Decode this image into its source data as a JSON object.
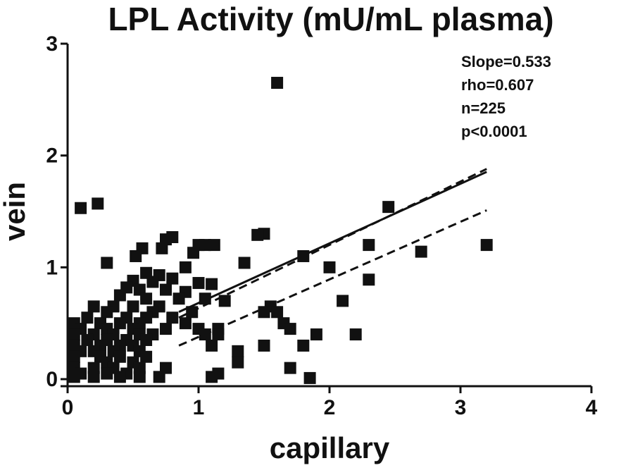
{
  "chart_data": {
    "type": "scatter",
    "title": "LPL Activity (mU/mL plasma)",
    "xlabel": "capillary",
    "ylabel": "vein",
    "xlim": [
      0,
      4
    ],
    "ylim": [
      0,
      3
    ],
    "xticks": [
      "0",
      "1",
      "2",
      "3",
      "4"
    ],
    "yticks": [
      "0",
      "1",
      "2",
      "3"
    ],
    "grid": false,
    "annotations": [
      "Slope=0.533",
      "rho=0.607",
      "n=225",
      "p<0.0001"
    ],
    "regression": {
      "slope": 0.533,
      "x_range": [
        0,
        3.2
      ]
    },
    "confidence_band": {
      "lower": [
        [
          0.85,
          0.3
        ],
        [
          3.2,
          1.51
        ]
      ],
      "upper": [
        [
          0.85,
          0.55
        ],
        [
          3.2,
          1.88
        ]
      ]
    },
    "points": [
      [
        1.6,
        2.65
      ],
      [
        0.1,
        1.53
      ],
      [
        0.23,
        1.57
      ],
      [
        2.45,
        1.54
      ],
      [
        1.5,
        1.3
      ],
      [
        1.45,
        1.29
      ],
      [
        0.8,
        1.27
      ],
      [
        0.75,
        1.25
      ],
      [
        1.0,
        1.2
      ],
      [
        1.05,
        1.2
      ],
      [
        1.12,
        1.2
      ],
      [
        2.3,
        1.2
      ],
      [
        3.2,
        1.2
      ],
      [
        0.57,
        1.17
      ],
      [
        0.72,
        1.17
      ],
      [
        0.96,
        1.13
      ],
      [
        2.7,
        1.14
      ],
      [
        0.52,
        1.1
      ],
      [
        1.8,
        1.1
      ],
      [
        0.3,
        1.04
      ],
      [
        1.35,
        1.04
      ],
      [
        0.9,
        1.0
      ],
      [
        2.0,
        1.0
      ],
      [
        0.6,
        0.95
      ],
      [
        0.7,
        0.93
      ],
      [
        0.8,
        0.9
      ],
      [
        2.3,
        0.89
      ],
      [
        0.5,
        0.88
      ],
      [
        0.65,
        0.87
      ],
      [
        1.0,
        0.86
      ],
      [
        1.1,
        0.85
      ],
      [
        0.45,
        0.82
      ],
      [
        0.55,
        0.8
      ],
      [
        0.75,
        0.8
      ],
      [
        0.9,
        0.78
      ],
      [
        0.4,
        0.75
      ],
      [
        0.6,
        0.72
      ],
      [
        0.85,
        0.72
      ],
      [
        1.05,
        0.72
      ],
      [
        1.2,
        0.7
      ],
      [
        2.1,
        0.7
      ],
      [
        0.2,
        0.65
      ],
      [
        0.35,
        0.65
      ],
      [
        0.5,
        0.65
      ],
      [
        0.7,
        0.65
      ],
      [
        1.55,
        0.65
      ],
      [
        0.3,
        0.6
      ],
      [
        0.65,
        0.6
      ],
      [
        0.95,
        0.6
      ],
      [
        1.5,
        0.6
      ],
      [
        1.6,
        0.6
      ],
      [
        0.15,
        0.55
      ],
      [
        0.45,
        0.55
      ],
      [
        0.6,
        0.55
      ],
      [
        0.8,
        0.55
      ],
      [
        0.05,
        0.5
      ],
      [
        0.25,
        0.5
      ],
      [
        0.4,
        0.5
      ],
      [
        0.55,
        0.5
      ],
      [
        0.9,
        0.5
      ],
      [
        1.65,
        0.5
      ],
      [
        0.1,
        0.45
      ],
      [
        0.3,
        0.45
      ],
      [
        0.5,
        0.45
      ],
      [
        0.75,
        0.45
      ],
      [
        1.0,
        0.45
      ],
      [
        1.15,
        0.45
      ],
      [
        1.7,
        0.45
      ],
      [
        0.05,
        0.4
      ],
      [
        0.2,
        0.4
      ],
      [
        0.35,
        0.4
      ],
      [
        0.55,
        0.4
      ],
      [
        0.65,
        0.4
      ],
      [
        1.05,
        0.4
      ],
      [
        1.15,
        0.4
      ],
      [
        1.9,
        0.4
      ],
      [
        2.2,
        0.4
      ],
      [
        0.15,
        0.35
      ],
      [
        0.3,
        0.35
      ],
      [
        0.45,
        0.35
      ],
      [
        0.6,
        0.35
      ],
      [
        0.05,
        0.3
      ],
      [
        0.25,
        0.3
      ],
      [
        0.4,
        0.3
      ],
      [
        0.5,
        0.3
      ],
      [
        1.1,
        0.3
      ],
      [
        1.5,
        0.3
      ],
      [
        1.8,
        0.3
      ],
      [
        0.1,
        0.25
      ],
      [
        0.2,
        0.25
      ],
      [
        0.35,
        0.25
      ],
      [
        0.55,
        0.25
      ],
      [
        1.3,
        0.25
      ],
      [
        0.05,
        0.2
      ],
      [
        0.25,
        0.2
      ],
      [
        0.4,
        0.2
      ],
      [
        0.6,
        0.2
      ],
      [
        0.3,
        0.15
      ],
      [
        0.5,
        0.15
      ],
      [
        1.3,
        0.15
      ],
      [
        0.05,
        0.1
      ],
      [
        0.2,
        0.1
      ],
      [
        0.35,
        0.1
      ],
      [
        0.55,
        0.1
      ],
      [
        0.75,
        0.1
      ],
      [
        1.7,
        0.1
      ],
      [
        0.1,
        0.05
      ],
      [
        0.3,
        0.05
      ],
      [
        0.45,
        0.05
      ],
      [
        1.15,
        0.05
      ],
      [
        0.05,
        0.02
      ],
      [
        0.2,
        0.02
      ],
      [
        0.4,
        0.02
      ],
      [
        0.55,
        0.02
      ],
      [
        0.7,
        0.02
      ],
      [
        1.1,
        0.02
      ],
      [
        1.85,
        0.01
      ]
    ]
  }
}
